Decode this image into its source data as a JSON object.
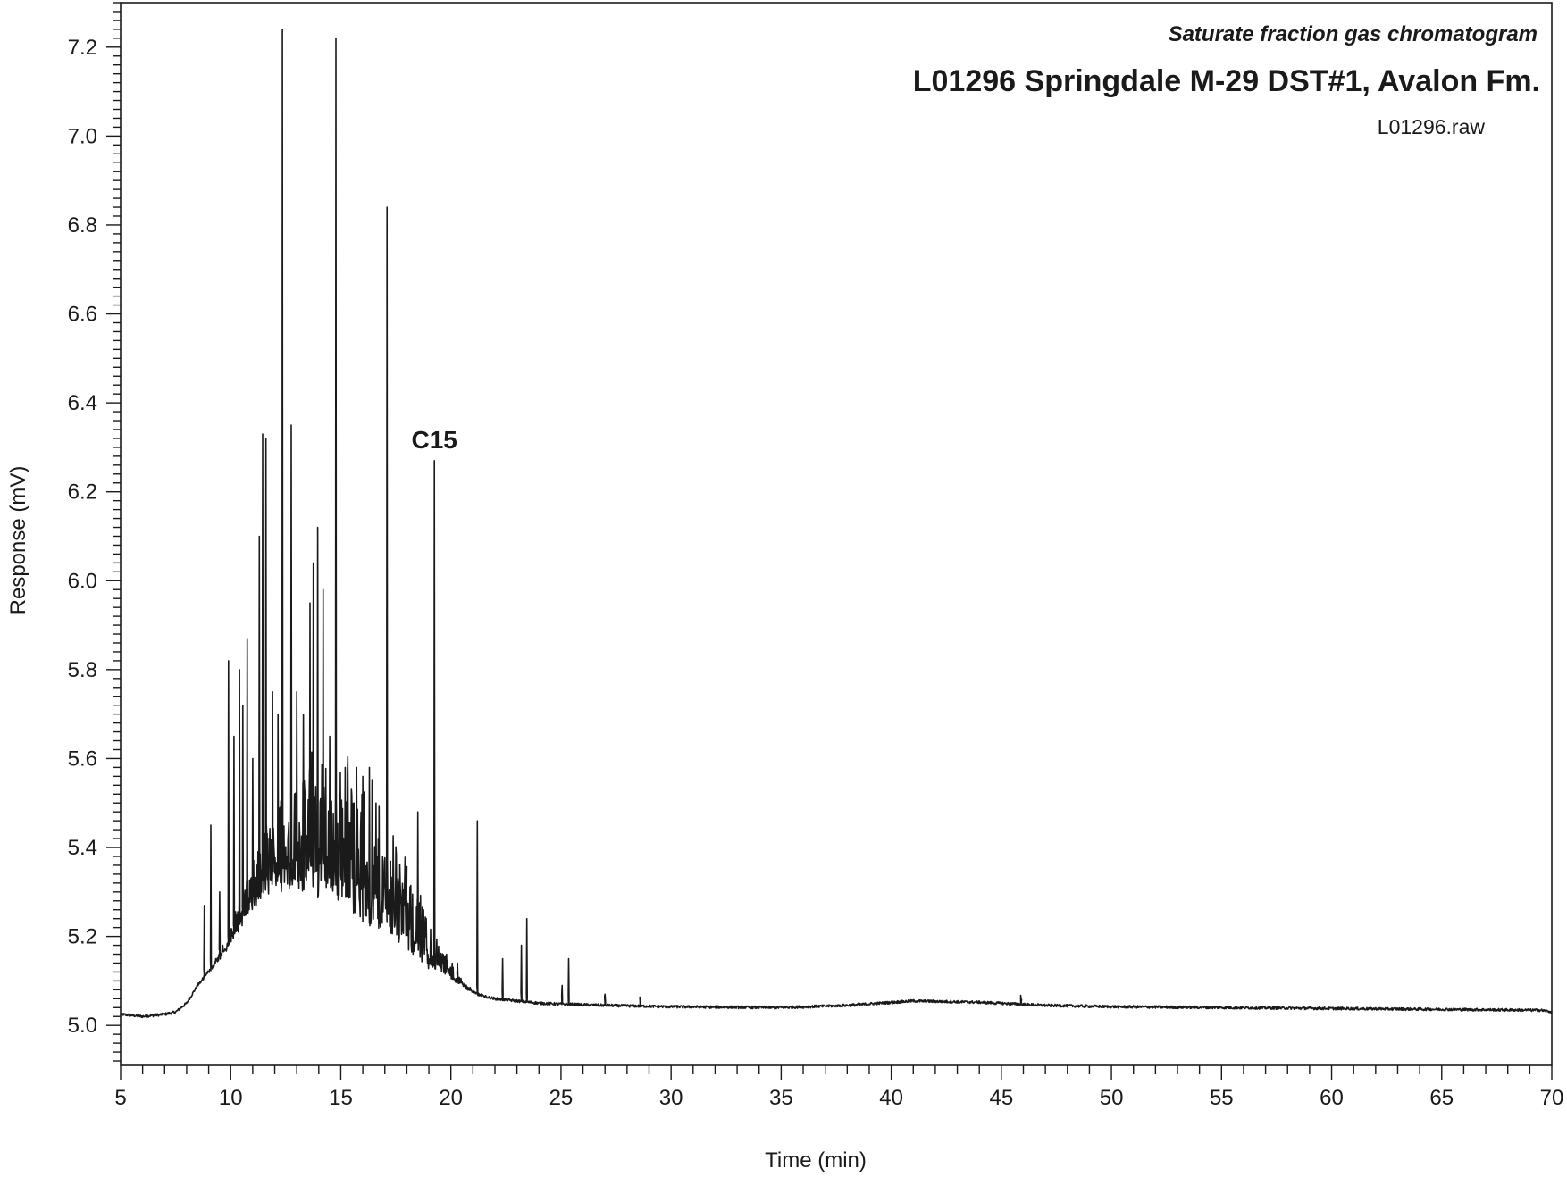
{
  "chart_data": {
    "type": "line",
    "subtitle": "Saturate fraction gas chromatogram",
    "title": "L01296  Springdale M-29  DST#1,  Avalon Fm.",
    "filename": "L01296.raw",
    "xlabel": "Time (min)",
    "ylabel": "Response (mV)",
    "xlim": [
      5,
      70
    ],
    "ylim": [
      4.91,
      7.3
    ],
    "x_ticks": [
      5,
      10,
      15,
      20,
      25,
      30,
      35,
      40,
      45,
      50,
      55,
      60,
      65,
      70
    ],
    "y_ticks": [
      "5.0",
      "5.2",
      "5.4",
      "5.6",
      "5.8",
      "6.0",
      "6.2",
      "6.4",
      "6.6",
      "6.8",
      "7.0",
      "7.2"
    ],
    "grid": false,
    "color": "#1a1a1a",
    "baseline": [
      [
        5.0,
        5.025
      ],
      [
        6.0,
        5.02
      ],
      [
        7.0,
        5.025
      ],
      [
        7.5,
        5.03
      ],
      [
        8.0,
        5.05
      ],
      [
        8.5,
        5.09
      ],
      [
        9.0,
        5.12
      ],
      [
        9.5,
        5.15
      ],
      [
        10.0,
        5.19
      ],
      [
        10.5,
        5.24
      ],
      [
        11.0,
        5.28
      ],
      [
        11.5,
        5.32
      ],
      [
        12.0,
        5.34
      ],
      [
        12.5,
        5.35
      ],
      [
        13.0,
        5.36
      ],
      [
        13.5,
        5.36
      ],
      [
        14.0,
        5.355
      ],
      [
        14.5,
        5.35
      ],
      [
        15.0,
        5.34
      ],
      [
        15.5,
        5.32
      ],
      [
        16.0,
        5.3
      ],
      [
        16.5,
        5.28
      ],
      [
        17.0,
        5.26
      ],
      [
        17.5,
        5.24
      ],
      [
        18.0,
        5.21
      ],
      [
        18.5,
        5.18
      ],
      [
        19.0,
        5.15
      ],
      [
        19.5,
        5.13
      ],
      [
        20.0,
        5.11
      ],
      [
        20.5,
        5.09
      ],
      [
        21.0,
        5.075
      ],
      [
        21.5,
        5.065
      ],
      [
        22.0,
        5.06
      ],
      [
        23.0,
        5.055
      ],
      [
        24.0,
        5.05
      ],
      [
        25.0,
        5.048
      ],
      [
        27.0,
        5.045
      ],
      [
        30.0,
        5.042
      ],
      [
        35.0,
        5.04
      ],
      [
        38.0,
        5.045
      ],
      [
        41.0,
        5.055
      ],
      [
        44.0,
        5.052
      ],
      [
        47.0,
        5.045
      ],
      [
        50.0,
        5.042
      ],
      [
        55.0,
        5.04
      ],
      [
        60.0,
        5.038
      ],
      [
        65.0,
        5.036
      ],
      [
        69.5,
        5.034
      ],
      [
        70.0,
        5.03
      ]
    ],
    "peaks": [
      [
        8.8,
        5.27
      ],
      [
        9.1,
        5.45
      ],
      [
        9.5,
        5.3
      ],
      [
        9.9,
        5.82
      ],
      [
        10.15,
        5.65
      ],
      [
        10.4,
        5.8
      ],
      [
        10.55,
        5.72
      ],
      [
        10.75,
        5.87
      ],
      [
        11.0,
        5.6
      ],
      [
        11.3,
        6.1
      ],
      [
        11.45,
        6.33
      ],
      [
        11.6,
        6.32
      ],
      [
        11.9,
        5.75
      ],
      [
        12.15,
        5.7
      ],
      [
        12.35,
        7.24
      ],
      [
        12.75,
        6.35
      ],
      [
        13.0,
        5.75
      ],
      [
        13.3,
        5.7
      ],
      [
        13.6,
        5.95
      ],
      [
        13.75,
        6.04
      ],
      [
        13.95,
        6.12
      ],
      [
        14.2,
        5.98
      ],
      [
        14.5,
        5.65
      ],
      [
        14.78,
        7.22
      ],
      [
        15.2,
        5.58
      ],
      [
        15.6,
        5.5
      ],
      [
        16.0,
        5.56
      ],
      [
        16.3,
        5.58
      ],
      [
        16.6,
        5.5
      ],
      [
        17.1,
        6.84
      ],
      [
        17.6,
        5.33
      ],
      [
        18.0,
        5.28
      ],
      [
        18.5,
        5.48
      ],
      [
        19.25,
        6.27
      ],
      [
        19.8,
        5.16
      ],
      [
        20.3,
        5.14
      ],
      [
        21.2,
        5.46
      ],
      [
        22.35,
        5.15
      ],
      [
        23.2,
        5.18
      ],
      [
        23.45,
        5.24
      ],
      [
        25.05,
        5.09
      ],
      [
        25.35,
        5.15
      ],
      [
        27.0,
        5.07
      ],
      [
        28.6,
        5.05
      ],
      [
        45.9,
        5.06
      ]
    ],
    "minor_peak_region": [
      8.5,
      21.5
    ],
    "annotations": [
      {
        "text": "C15",
        "x": 19.25,
        "y": 6.27
      }
    ]
  }
}
